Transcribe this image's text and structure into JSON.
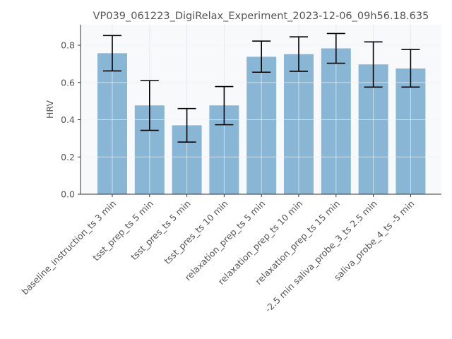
{
  "chart_data": {
    "type": "bar",
    "title": "VP039_061223_DigiRelax_Experiment_2023-12-06_09h56.18.635",
    "xlabel": "",
    "ylabel": "HRV",
    "ylim": [
      0,
      0.91
    ],
    "yticks": [
      "0.0",
      "0.2",
      "0.4",
      "0.6",
      "0.8"
    ],
    "grid": true,
    "categories": [
      "baseline_instruction_ts 3 min",
      "tsst_prep_ts 5 min",
      "tsst_pres_ts 5 min",
      "tsst_pres_ts 10 min",
      "relaxation_prep_ts 5 min",
      "relaxation_prep_ts 10 min",
      "relaxation_prep_ts 15 min",
      "-2.5 min saliva_probe_3_ts 2.5 min",
      "saliva_probe_4_ts -5 min"
    ],
    "values": [
      0.757,
      0.477,
      0.37,
      0.477,
      0.738,
      0.752,
      0.783,
      0.697,
      0.675
    ],
    "error_low": [
      0.662,
      0.343,
      0.28,
      0.373,
      0.655,
      0.66,
      0.703,
      0.575,
      0.575
    ],
    "error_high": [
      0.852,
      0.61,
      0.46,
      0.578,
      0.822,
      0.845,
      0.863,
      0.818,
      0.777
    ],
    "colors": {
      "bar": "#8ab6d6",
      "error": "#000000",
      "plot_bg": "#f8f9fb",
      "grid": "#e6e9ee",
      "axis": "#333333",
      "text": "#555555"
    }
  }
}
